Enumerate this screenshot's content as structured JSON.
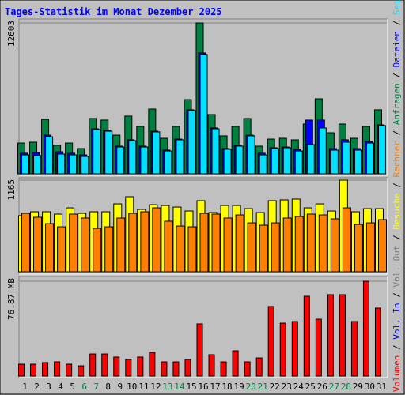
{
  "chart_data": [
    {
      "type": "bar",
      "title": "Tages-Statistik im Monat Dezember 2025",
      "ylim": [
        0,
        12603
      ],
      "yticks": [
        12603
      ],
      "series": [
        {
          "name": "Anfragen",
          "color": "#008040",
          "values": [
            2570,
            2640,
            4550,
            2380,
            2570,
            2110,
            4620,
            4490,
            3230,
            4820,
            3960,
            5410,
            2970,
            3960,
            6200,
            12603,
            4950,
            3170,
            3960,
            4620,
            2310,
            2900,
            2970,
            2840,
            4160,
            6270,
            3430,
            4160,
            2970,
            3960,
            5350
          ]
        },
        {
          "name": "Dateien",
          "color": "#0000ff",
          "values": [
            1720,
            1780,
            3230,
            1850,
            1720,
            1580,
            3760,
            3630,
            2310,
            2840,
            2310,
            3560,
            1980,
            2900,
            5350,
            10100,
            3830,
            2110,
            2380,
            3230,
            1720,
            2180,
            2240,
            2050,
            4490,
            4490,
            2110,
            2840,
            2110,
            2710,
            4090
          ]
        },
        {
          "name": "Seiten",
          "color": "#00e0ff",
          "values": [
            1580,
            1520,
            3100,
            1650,
            1580,
            1450,
            3700,
            3560,
            2240,
            2770,
            2240,
            3500,
            1910,
            2840,
            5280,
            9970,
            3760,
            2050,
            2310,
            3170,
            1580,
            2110,
            2180,
            1910,
            2440,
            3830,
            1980,
            2640,
            1980,
            2570,
            4030
          ]
        }
      ]
    },
    {
      "type": "bar",
      "ylim": [
        0,
        1165
      ],
      "yticks": [
        1165
      ],
      "series": [
        {
          "name": "Besuche",
          "color": "#ffff00",
          "values": [
            713,
            763,
            763,
            733,
            813,
            743,
            763,
            763,
            863,
            954,
            793,
            853,
            843,
            823,
            773,
            904,
            753,
            843,
            843,
            803,
            753,
            904,
            914,
            924,
            813,
            863,
            773,
            1165,
            763,
            803,
            803
          ]
        },
        {
          "name": "Rechner",
          "color": "#ff8000",
          "values": [
            743,
            693,
            612,
            572,
            733,
            683,
            552,
            572,
            683,
            743,
            763,
            813,
            643,
            582,
            572,
            743,
            733,
            683,
            723,
            622,
            592,
            622,
            683,
            703,
            733,
            723,
            673,
            813,
            602,
            622,
            663
          ]
        }
      ]
    },
    {
      "type": "bar",
      "ylim": [
        0,
        76.87
      ],
      "yticks": [
        {
          "value": 76.87,
          "label": "76.87 MB"
        }
      ],
      "categories": [
        "1",
        "2",
        "3",
        "4",
        "5",
        "6",
        "7",
        "8",
        "9",
        "10",
        "11",
        "12",
        "13",
        "14",
        "15",
        "16",
        "17",
        "18",
        "19",
        "20",
        "21",
        "22",
        "23",
        "24",
        "25",
        "26",
        "27",
        "28",
        "29",
        "30",
        "31"
      ],
      "category_colors": [
        "#000000",
        "#000000",
        "#000000",
        "#000000",
        "#000000",
        "#008040",
        "#008040",
        "#000000",
        "#000000",
        "#000000",
        "#000000",
        "#000000",
        "#008040",
        "#008040",
        "#000000",
        "#000000",
        "#000000",
        "#000000",
        "#000000",
        "#008040",
        "#008040",
        "#000000",
        "#000000",
        "#000000",
        "#000000",
        "#000000",
        "#008040",
        "#008040",
        "#000000",
        "#000000",
        "#000000"
      ],
      "series": [
        {
          "name": "Volumen",
          "color": "#ff0000",
          "values": [
            9.6,
            9.6,
            10.9,
            11.5,
            9.6,
            8.3,
            17.9,
            17.9,
            15.4,
            13.5,
            15.4,
            19.2,
            11.5,
            11.5,
            13.5,
            42.3,
            17.3,
            11.5,
            20.5,
            11.5,
            14.7,
            56.4,
            42.9,
            44.2,
            64.7,
            46.1,
            66.0,
            66.0,
            44.2,
            76.87,
            55.1
          ]
        },
        {
          "name": "Vol. In",
          "color": "#0000ff"
        },
        {
          "name": "Vol. Out",
          "color": "#808080"
        }
      ]
    }
  ]
}
